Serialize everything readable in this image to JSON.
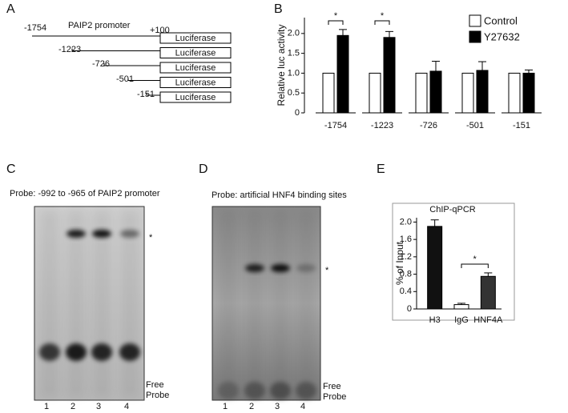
{
  "panel_labels": [
    "A",
    "B",
    "C",
    "D",
    "E"
  ],
  "panel_a": {
    "title": "PAIP2 promoter",
    "end_label": "+100",
    "constructs": [
      {
        "start": "-1754",
        "box": "Luciferase"
      },
      {
        "start": "-1223",
        "box": "Luciferase"
      },
      {
        "start": "-726",
        "box": "Luciferase"
      },
      {
        "start": "-501",
        "box": "Luciferase"
      },
      {
        "start": "-151",
        "box": "Luciferase"
      }
    ]
  },
  "chart_data": [
    {
      "type": "bar",
      "y_label": "Relative luc activity",
      "categories": [
        "-1754",
        "-1223",
        "-726",
        "-501",
        "-151"
      ],
      "series": [
        {
          "name": "Control",
          "color": "#ffffff",
          "values": [
            1,
            1,
            1,
            1,
            1
          ]
        },
        {
          "name": "Y27632",
          "color": "#000000",
          "values": [
            1.95,
            1.9,
            1.05,
            1.07,
            1.0
          ],
          "errors": [
            0.15,
            0.15,
            0.25,
            0.22,
            0.08
          ]
        }
      ],
      "ylim": [
        0,
        2.4
      ],
      "yticks": [
        0,
        0.5,
        {
          "value": 1,
          "label": "1.0"
        },
        1.5,
        {
          "value": 2,
          "label": "2.0"
        }
      ],
      "annotations": [
        "*",
        "*"
      ]
    },
    {
      "type": "bar",
      "title": "ChIP-qPCR",
      "y_label": "% of Input",
      "categories": [
        "H3",
        "IgG",
        "HNF4A"
      ],
      "values": [
        1.9,
        0.1,
        0.75
      ],
      "errors": [
        0.15,
        0.03,
        0.08
      ],
      "colors": [
        "#111111",
        "#ffffff",
        "#333333"
      ],
      "ylim": [
        0,
        2.1
      ],
      "yticks": [
        0,
        0.4,
        0.8,
        1.2,
        1.6,
        {
          "value": 2,
          "label": "2.0"
        }
      ],
      "annotations": [
        "*"
      ]
    }
  ],
  "gel_c": {
    "probe": "Probe: -992 to -965 of PAIP2 promoter",
    "marker": "*",
    "free_probe": [
      "Free",
      "Probe"
    ],
    "lanes": [
      "1",
      "2",
      "3",
      "4"
    ]
  },
  "gel_d": {
    "probe": "Probe: artificial HNF4 binding sites",
    "marker": "*",
    "free_probe": [
      "Free",
      "Probe"
    ],
    "lanes": [
      "1",
      "2",
      "3",
      "4"
    ]
  }
}
